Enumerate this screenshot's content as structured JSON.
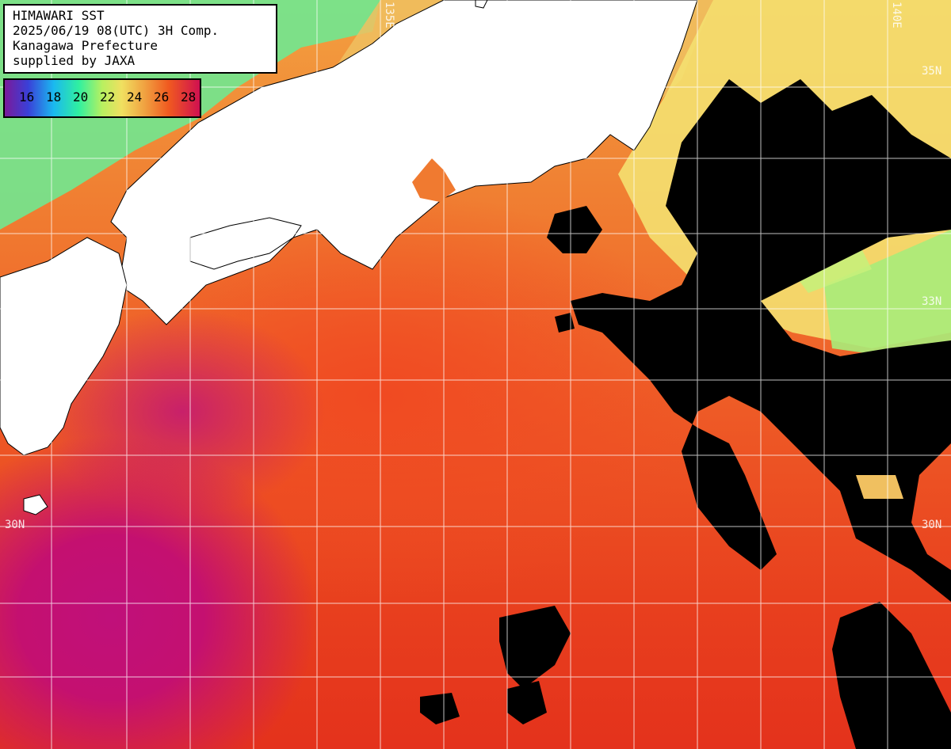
{
  "header": {
    "title": "HIMAWARI SST",
    "datetime": "2025/06/19 08(UTC) 3H Comp.",
    "region": "Kanagawa Prefecture",
    "credit": "supplied by JAXA"
  },
  "scale": {
    "labels": [
      "16",
      "18",
      "20",
      "22",
      "24",
      "26",
      "28"
    ]
  },
  "grid_labels": {
    "lat_35n_right": "35N",
    "lat_33n_right": "33N",
    "lat_30n_left": "30N",
    "lat_30n_right": "30N",
    "lon_top_mid": "135E",
    "lon_top_right": "140E"
  },
  "colors": {
    "land": "#ffffff",
    "cloud": "#000000",
    "grid": "#ffffff"
  }
}
